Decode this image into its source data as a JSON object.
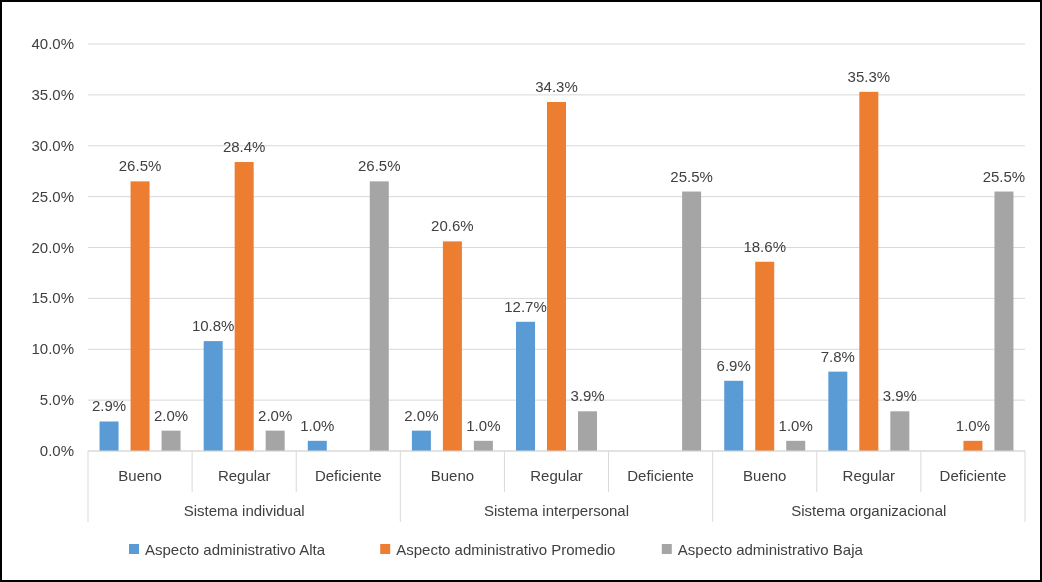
{
  "chart_data": {
    "type": "bar",
    "categories": [
      "Bueno",
      "Regular",
      "Deficiente",
      "Bueno",
      "Regular",
      "Deficiente",
      "Bueno",
      "Regular",
      "Deficiente"
    ],
    "annotations": [
      "Sistema individual",
      "Sistema interpersonal",
      "Sistema organizacional"
    ],
    "series": [
      {
        "name": "Aspecto administrativo Alta",
        "color": "#5b9bd5",
        "values": [
          2.9,
          10.8,
          1.0,
          2.0,
          12.7,
          null,
          6.9,
          7.8,
          null
        ],
        "value_labels": [
          "2.9%",
          "10.8%",
          "1.0%",
          "2.0%",
          "12.7%",
          null,
          "6.9%",
          "7.8%",
          null
        ]
      },
      {
        "name": "Aspecto administrativo Promedio",
        "color": "#ed7d31",
        "values": [
          26.5,
          28.4,
          null,
          20.6,
          34.3,
          null,
          18.6,
          35.3,
          1.0
        ],
        "value_labels": [
          "26.5%",
          "28.4%",
          null,
          "20.6%",
          "34.3%",
          null,
          "18.6%",
          "35.3%",
          "1.0%"
        ]
      },
      {
        "name": "Aspecto administrativo Baja",
        "color": "#a5a5a5",
        "values": [
          2.0,
          2.0,
          26.5,
          1.0,
          3.9,
          25.5,
          1.0,
          3.9,
          25.5
        ],
        "value_labels": [
          "2.0%",
          "2.0%",
          "26.5%",
          "1.0%",
          "3.9%",
          "25.5%",
          "1.0%",
          "3.9%",
          "25.5%"
        ]
      }
    ],
    "ylim": [
      0,
      40
    ],
    "yticks": [
      {
        "value": 0,
        "label": "0.0%"
      },
      {
        "value": 5,
        "label": "5.0%"
      },
      {
        "value": 10,
        "label": "10.0%"
      },
      {
        "value": 15,
        "label": "15.0%"
      },
      {
        "value": 20,
        "label": "20.0%"
      },
      {
        "value": 25,
        "label": "25.0%"
      },
      {
        "value": 30,
        "label": "30.0%"
      },
      {
        "value": 35,
        "label": "35.0%"
      },
      {
        "value": 40,
        "label": "40.0%"
      }
    ],
    "grid": "y",
    "legend": "bottom"
  }
}
